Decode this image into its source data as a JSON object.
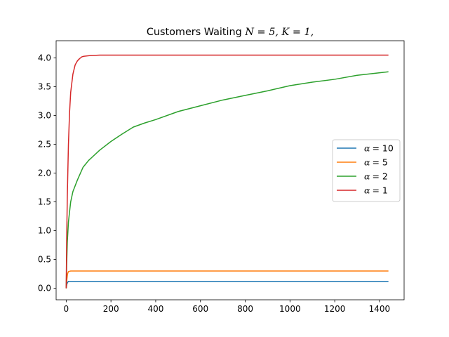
{
  "chart_data": {
    "type": "line",
    "title": "Customers Waiting N = 5, K = 1,",
    "title_prefix": "Customers Waiting ",
    "title_math": "N = 5, K = 1,",
    "xlabel": "",
    "ylabel": "",
    "xlim": [
      -45,
      1510
    ],
    "ylim": [
      -0.2,
      4.3
    ],
    "x_ticks": [
      0,
      200,
      400,
      600,
      800,
      1000,
      1200,
      1400
    ],
    "x_tick_labels": [
      "0",
      "200",
      "400",
      "600",
      "800",
      "1000",
      "1200",
      "1400"
    ],
    "y_ticks": [
      0.0,
      0.5,
      1.0,
      1.5,
      2.0,
      2.5,
      3.0,
      3.5,
      4.0
    ],
    "y_tick_labels": [
      "0.0",
      "0.5",
      "1.0",
      "1.5",
      "2.0",
      "2.5",
      "3.0",
      "3.5",
      "4.0"
    ],
    "grid": false,
    "legend_position": "center-right",
    "series": [
      {
        "name": "α = 10",
        "legend_symbol": "α",
        "legend_value": "= 10",
        "color": "#1f77b4",
        "x": [
          0,
          3,
          6,
          10,
          20,
          50,
          100,
          200,
          300,
          400,
          500,
          600,
          700,
          800,
          900,
          1000,
          1100,
          1200,
          1300,
          1440
        ],
        "y": [
          0.0,
          0.07,
          0.1,
          0.12,
          0.12,
          0.12,
          0.12,
          0.12,
          0.12,
          0.12,
          0.12,
          0.12,
          0.12,
          0.12,
          0.12,
          0.12,
          0.12,
          0.12,
          0.12,
          0.12
        ]
      },
      {
        "name": "α = 5",
        "legend_symbol": "α",
        "legend_value": "= 5",
        "color": "#ff7f0e",
        "x": [
          0,
          3,
          6,
          10,
          20,
          50,
          100,
          200,
          300,
          400,
          500,
          600,
          700,
          800,
          900,
          1000,
          1100,
          1200,
          1300,
          1440
        ],
        "y": [
          0.0,
          0.15,
          0.25,
          0.29,
          0.3,
          0.3,
          0.3,
          0.3,
          0.3,
          0.3,
          0.3,
          0.3,
          0.3,
          0.3,
          0.3,
          0.3,
          0.3,
          0.3,
          0.3,
          0.3
        ]
      },
      {
        "name": "α = 2",
        "legend_symbol": "α",
        "legend_value": "= 2",
        "color": "#2ca02c",
        "x": [
          0,
          2,
          5,
          10,
          20,
          30,
          50,
          75,
          100,
          150,
          200,
          250,
          300,
          350,
          400,
          500,
          600,
          700,
          800,
          900,
          1000,
          1100,
          1200,
          1300,
          1440
        ],
        "y": [
          0.0,
          0.4,
          0.8,
          1.15,
          1.5,
          1.68,
          1.88,
          2.1,
          2.22,
          2.4,
          2.55,
          2.68,
          2.8,
          2.87,
          2.93,
          3.07,
          3.17,
          3.27,
          3.35,
          3.43,
          3.52,
          3.58,
          3.63,
          3.7,
          3.76
        ]
      },
      {
        "name": "α = 1",
        "legend_symbol": "α",
        "legend_value": "= 1",
        "color": "#d62728",
        "x": [
          0,
          2,
          5,
          10,
          15,
          20,
          30,
          40,
          50,
          60,
          70,
          80,
          100,
          150,
          200,
          300,
          400,
          600,
          800,
          1000,
          1200,
          1440
        ],
        "y": [
          0.0,
          0.8,
          1.6,
          2.5,
          3.05,
          3.4,
          3.72,
          3.88,
          3.95,
          3.99,
          4.02,
          4.03,
          4.04,
          4.05,
          4.05,
          4.05,
          4.05,
          4.05,
          4.05,
          4.05,
          4.05,
          4.05
        ]
      }
    ]
  }
}
